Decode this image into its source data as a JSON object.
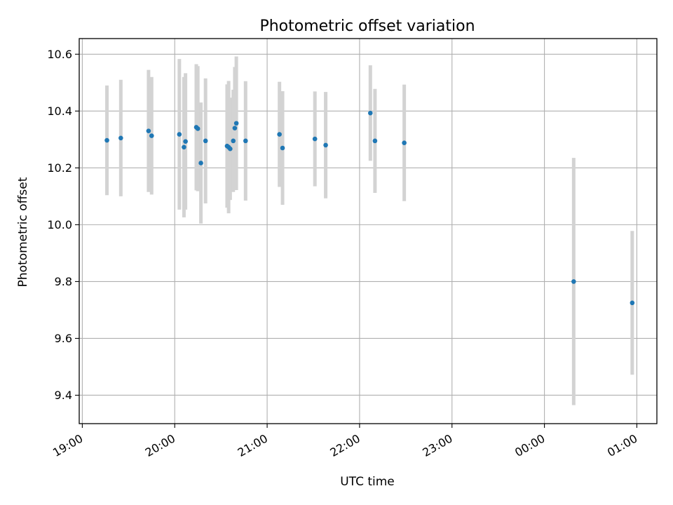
{
  "chart_data": {
    "type": "scatter",
    "title": "Photometric offset variation",
    "xlabel": "UTC time",
    "ylabel": "Photometric offset",
    "x_axis_type": "time",
    "xlim": [
      "2020-01-01T18:58",
      "2020-01-02T01:13"
    ],
    "ylim": [
      9.3,
      10.655
    ],
    "x_ticks": [
      {
        "t": "2020-01-01T19:00",
        "label": "19:00"
      },
      {
        "t": "2020-01-01T20:00",
        "label": "20:00"
      },
      {
        "t": "2020-01-01T21:00",
        "label": "21:00"
      },
      {
        "t": "2020-01-01T22:00",
        "label": "22:00"
      },
      {
        "t": "2020-01-01T23:00",
        "label": "23:00"
      },
      {
        "t": "2020-01-02T00:00",
        "label": "00:00"
      },
      {
        "t": "2020-01-02T01:00",
        "label": "01:00"
      }
    ],
    "y_ticks": [
      {
        "v": 9.4,
        "label": "9.4"
      },
      {
        "v": 9.6,
        "label": "9.6"
      },
      {
        "v": 9.8,
        "label": "9.8"
      },
      {
        "v": 10.0,
        "label": "10.0"
      },
      {
        "v": 10.2,
        "label": "10.2"
      },
      {
        "v": 10.4,
        "label": "10.4"
      },
      {
        "v": 10.6,
        "label": "10.6"
      }
    ],
    "grid": true,
    "colors": {
      "point": "#1f77b4",
      "errorbar": "#d3d3d3",
      "grid": "#b0b0b0",
      "axes": "#000000"
    },
    "points": [
      {
        "t": "2020-01-01T19:16",
        "y": 10.297,
        "err": 0.193
      },
      {
        "t": "2020-01-01T19:25",
        "y": 10.305,
        "err": 0.205
      },
      {
        "t": "2020-01-01T19:43",
        "y": 10.33,
        "err": 0.215
      },
      {
        "t": "2020-01-01T19:45",
        "y": 10.313,
        "err": 0.207
      },
      {
        "t": "2020-01-01T20:03",
        "y": 10.318,
        "err": 0.265
      },
      {
        "t": "2020-01-01T20:06",
        "y": 10.273,
        "err": 0.247
      },
      {
        "t": "2020-01-01T20:07",
        "y": 10.293,
        "err": 0.24
      },
      {
        "t": "2020-01-01T20:14",
        "y": 10.343,
        "err": 0.222
      },
      {
        "t": "2020-01-01T20:15",
        "y": 10.338,
        "err": 0.22
      },
      {
        "t": "2020-01-01T20:17",
        "y": 10.217,
        "err": 0.213
      },
      {
        "t": "2020-01-01T20:20",
        "y": 10.295,
        "err": 0.22
      },
      {
        "t": "2020-01-01T20:34",
        "y": 10.277,
        "err": 0.217
      },
      {
        "t": "2020-01-01T20:35",
        "y": 10.273,
        "err": 0.233
      },
      {
        "t": "2020-01-01T20:36",
        "y": 10.267,
        "err": 0.18
      },
      {
        "t": "2020-01-01T20:38",
        "y": 10.295,
        "err": 0.18
      },
      {
        "t": "2020-01-01T20:39",
        "y": 10.34,
        "err": 0.215
      },
      {
        "t": "2020-01-01T20:40",
        "y": 10.357,
        "err": 0.235
      },
      {
        "t": "2020-01-01T20:46",
        "y": 10.295,
        "err": 0.21
      },
      {
        "t": "2020-01-01T21:08",
        "y": 10.318,
        "err": 0.185
      },
      {
        "t": "2020-01-01T21:10",
        "y": 10.27,
        "err": 0.2
      },
      {
        "t": "2020-01-01T21:31",
        "y": 10.302,
        "err": 0.167
      },
      {
        "t": "2020-01-01T21:38",
        "y": 10.28,
        "err": 0.187
      },
      {
        "t": "2020-01-01T22:07",
        "y": 10.393,
        "err": 0.168
      },
      {
        "t": "2020-01-01T22:10",
        "y": 10.295,
        "err": 0.183
      },
      {
        "t": "2020-01-01T22:29",
        "y": 10.288,
        "err": 0.205
      },
      {
        "t": "2020-01-02T00:19",
        "y": 9.8,
        "err": 0.435
      },
      {
        "t": "2020-01-02T00:57",
        "y": 9.725,
        "err": 0.253
      }
    ]
  }
}
